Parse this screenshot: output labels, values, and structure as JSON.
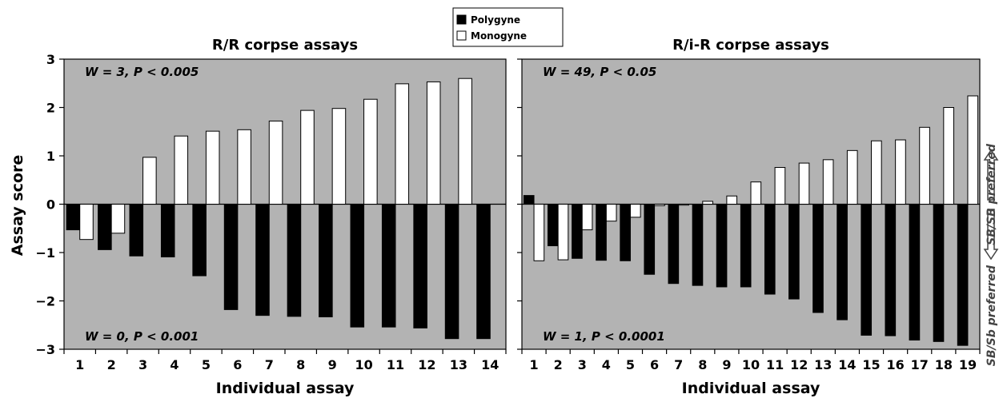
{
  "legend": [
    {
      "name": "Polygyne",
      "color": "#000000"
    },
    {
      "name": "Monogyne",
      "color": "#ffffff"
    }
  ],
  "y_axis_label": "Assay score",
  "side_labels": {
    "upper": "SB/SB preferred",
    "lower": "SB/Sb preferred"
  },
  "colors": {
    "panel_background": "#b3b3b3",
    "polygyne": "#000000",
    "monogyne": "#ffffff"
  },
  "chart_data": [
    {
      "type": "bar",
      "title": "R/R corpse assays",
      "xlabel": "Individual assay",
      "ylabel": "Assay score",
      "ylim": [
        -3,
        3
      ],
      "yticks": [
        "−3",
        "−2",
        "−1",
        "0",
        "1",
        "2",
        "3"
      ],
      "categories": [
        "1",
        "2",
        "3",
        "4",
        "5",
        "6",
        "7",
        "8",
        "9",
        "10",
        "11",
        "12",
        "13",
        "14"
      ],
      "series": [
        {
          "name": "Polygyne",
          "values": [
            -0.53,
            -0.94,
            -1.07,
            -1.09,
            -1.48,
            -2.18,
            -2.3,
            -2.32,
            -2.33,
            -2.54,
            -2.54,
            -2.56,
            -2.78,
            -2.78
          ]
        },
        {
          "name": "Monogyne",
          "values": [
            -0.73,
            -0.6,
            0.97,
            1.41,
            1.51,
            1.54,
            1.72,
            1.94,
            1.98,
            2.17,
            2.49,
            2.53,
            2.6,
            null
          ]
        }
      ],
      "annotations": {
        "upper": "W = 3, P < 0.005",
        "lower": "W = 0, P < 0.001"
      }
    },
    {
      "type": "bar",
      "title": "R/i-R corpse assays",
      "xlabel": "Individual assay",
      "ylabel": "",
      "ylim": [
        -3,
        3
      ],
      "categories": [
        "1",
        "2",
        "3",
        "4",
        "5",
        "6",
        "7",
        "8",
        "9",
        "10",
        "11",
        "12",
        "13",
        "14",
        "15",
        "16",
        "17",
        "18",
        "19"
      ],
      "series": [
        {
          "name": "Polygyne",
          "values": [
            0.18,
            -0.86,
            -1.12,
            -1.16,
            -1.17,
            -1.45,
            -1.64,
            -1.68,
            -1.71,
            -1.71,
            -1.86,
            -1.96,
            -2.24,
            -2.39,
            -2.71,
            -2.72,
            -2.81,
            -2.84,
            -2.92
          ]
        },
        {
          "name": "Monogyne",
          "values": [
            -1.17,
            -1.15,
            -0.53,
            -0.35,
            -0.27,
            -0.03,
            -0.02,
            0.06,
            0.17,
            0.46,
            0.76,
            0.85,
            0.92,
            1.11,
            1.31,
            1.33,
            1.59,
            2.0,
            2.24
          ]
        }
      ],
      "annotations": {
        "upper": "W = 49, P < 0.05",
        "lower": "W = 1, P < 0.0001"
      }
    }
  ]
}
